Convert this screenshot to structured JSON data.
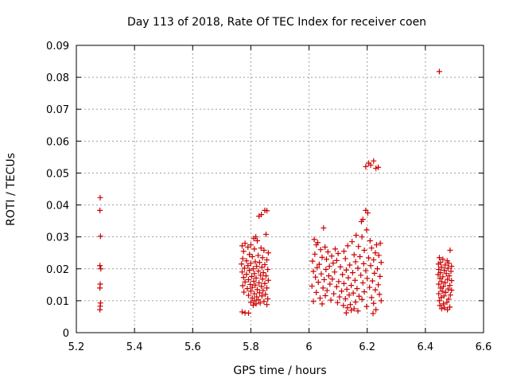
{
  "chart_data": {
    "type": "scatter",
    "title": "Day 113 of 2018, Rate Of TEC Index for receiver coen",
    "xlabel": "GPS time / hours",
    "ylabel": "ROTI / TECUs",
    "xlim": [
      5.2,
      6.6
    ],
    "ylim": [
      0,
      0.09
    ],
    "xticks": [
      5.2,
      5.4,
      5.6,
      5.8,
      6.0,
      6.2,
      6.4,
      6.6
    ],
    "xtick_labels": [
      "5.2",
      "5.4",
      "5.6",
      "5.8",
      "6",
      "6.2",
      "6.4",
      "6.6"
    ],
    "yticks": [
      0,
      0.01,
      0.02,
      0.03,
      0.04,
      0.05,
      0.06,
      0.07,
      0.08,
      0.09
    ],
    "ytick_labels": [
      "0",
      "0.01",
      "0.02",
      "0.03",
      "0.04",
      "0.05",
      "0.06",
      "0.07",
      "0.08",
      "0.09"
    ],
    "grid": true,
    "marker": "+",
    "color": "#cc0000",
    "series": [
      {
        "name": "ROTI",
        "points": [
          [
            5.282,
            0.0423
          ],
          [
            5.281,
            0.0383
          ],
          [
            5.283,
            0.0302
          ],
          [
            5.281,
            0.021
          ],
          [
            5.284,
            0.02
          ],
          [
            5.282,
            0.0152
          ],
          [
            5.281,
            0.014
          ],
          [
            5.283,
            0.0093
          ],
          [
            5.282,
            0.0083
          ],
          [
            5.281,
            0.0072
          ],
          [
            5.848,
            0.0383
          ],
          [
            5.855,
            0.0382
          ],
          [
            5.836,
            0.037
          ],
          [
            5.828,
            0.0365
          ],
          [
            5.852,
            0.0308
          ],
          [
            5.817,
            0.03
          ],
          [
            5.81,
            0.0295
          ],
          [
            5.822,
            0.0288
          ],
          [
            5.78,
            0.028
          ],
          [
            5.8,
            0.0275
          ],
          [
            5.77,
            0.0272
          ],
          [
            5.79,
            0.0268
          ],
          [
            5.835,
            0.0265
          ],
          [
            5.812,
            0.0262
          ],
          [
            5.845,
            0.0258
          ],
          [
            5.775,
            0.0255
          ],
          [
            5.86,
            0.025
          ],
          [
            5.795,
            0.0245
          ],
          [
            5.825,
            0.0242
          ],
          [
            5.805,
            0.0238
          ],
          [
            5.84,
            0.0235
          ],
          [
            5.772,
            0.0232
          ],
          [
            5.855,
            0.0228
          ],
          [
            5.785,
            0.0225
          ],
          [
            5.815,
            0.0222
          ],
          [
            5.83,
            0.022
          ],
          [
            5.8,
            0.0217
          ],
          [
            5.768,
            0.0215
          ],
          [
            5.848,
            0.0213
          ],
          [
            5.79,
            0.021
          ],
          [
            5.82,
            0.0208
          ],
          [
            5.838,
            0.0205
          ],
          [
            5.778,
            0.0202
          ],
          [
            5.808,
            0.02
          ],
          [
            5.858,
            0.0198
          ],
          [
            5.795,
            0.0195
          ],
          [
            5.826,
            0.0193
          ],
          [
            5.77,
            0.019
          ],
          [
            5.843,
            0.0188
          ],
          [
            5.812,
            0.0185
          ],
          [
            5.785,
            0.0183
          ],
          [
            5.833,
            0.018
          ],
          [
            5.852,
            0.0178
          ],
          [
            5.803,
            0.0176
          ],
          [
            5.775,
            0.0173
          ],
          [
            5.818,
            0.0171
          ],
          [
            5.84,
            0.0168
          ],
          [
            5.792,
            0.0166
          ],
          [
            5.86,
            0.0164
          ],
          [
            5.81,
            0.0161
          ],
          [
            5.78,
            0.0159
          ],
          [
            5.828,
            0.0156
          ],
          [
            5.848,
            0.0154
          ],
          [
            5.798,
            0.0151
          ],
          [
            5.815,
            0.0149
          ],
          [
            5.772,
            0.0147
          ],
          [
            5.836,
            0.0145
          ],
          [
            5.805,
            0.0142
          ],
          [
            5.855,
            0.014
          ],
          [
            5.788,
            0.0138
          ],
          [
            5.822,
            0.0135
          ],
          [
            5.842,
            0.0132
          ],
          [
            5.8,
            0.013
          ],
          [
            5.776,
            0.0127
          ],
          [
            5.83,
            0.0125
          ],
          [
            5.812,
            0.0122
          ],
          [
            5.85,
            0.012
          ],
          [
            5.792,
            0.0117
          ],
          [
            5.838,
            0.0115
          ],
          [
            5.82,
            0.0112
          ],
          [
            5.805,
            0.0108
          ],
          [
            5.858,
            0.0106
          ],
          [
            5.826,
            0.0103
          ],
          [
            5.812,
            0.01
          ],
          [
            5.845,
            0.0098
          ],
          [
            5.8,
            0.0095
          ],
          [
            5.832,
            0.0093
          ],
          [
            5.818,
            0.009
          ],
          [
            5.855,
            0.0088
          ],
          [
            5.808,
            0.0086
          ],
          [
            5.77,
            0.0065
          ],
          [
            5.78,
            0.0062
          ],
          [
            5.792,
            0.0061
          ],
          [
            6.195,
            0.0383
          ],
          [
            6.202,
            0.0375
          ],
          [
            6.185,
            0.0355
          ],
          [
            6.18,
            0.0348
          ],
          [
            6.198,
            0.0322
          ],
          [
            6.05,
            0.0328
          ],
          [
            6.182,
            0.03
          ],
          [
            6.162,
            0.0305
          ],
          [
            6.018,
            0.0292
          ],
          [
            6.21,
            0.0288
          ],
          [
            6.148,
            0.0285
          ],
          [
            6.03,
            0.0282
          ],
          [
            6.245,
            0.028
          ],
          [
            6.025,
            0.0275
          ],
          [
            6.232,
            0.0275
          ],
          [
            6.133,
            0.0272
          ],
          [
            6.17,
            0.027
          ],
          [
            6.055,
            0.0268
          ],
          [
            6.215,
            0.0265
          ],
          [
            6.09,
            0.0262
          ],
          [
            6.04,
            0.026
          ],
          [
            6.19,
            0.0258
          ],
          [
            6.12,
            0.0255
          ],
          [
            6.065,
            0.0253
          ],
          [
            6.228,
            0.025
          ],
          [
            6.1,
            0.0248
          ],
          [
            6.02,
            0.0246
          ],
          [
            6.155,
            0.0244
          ],
          [
            6.24,
            0.0242
          ],
          [
            6.078,
            0.024
          ],
          [
            6.175,
            0.0238
          ],
          [
            6.045,
            0.0236
          ],
          [
            6.205,
            0.0234
          ],
          [
            6.125,
            0.0232
          ],
          [
            6.06,
            0.023
          ],
          [
            6.222,
            0.0228
          ],
          [
            6.095,
            0.0226
          ],
          [
            6.012,
            0.0224
          ],
          [
            6.16,
            0.0222
          ],
          [
            6.248,
            0.022
          ],
          [
            6.083,
            0.0218
          ],
          [
            6.188,
            0.0216
          ],
          [
            6.035,
            0.0214
          ],
          [
            6.14,
            0.0212
          ],
          [
            6.212,
            0.021
          ],
          [
            6.07,
            0.0208
          ],
          [
            6.108,
            0.0206
          ],
          [
            6.028,
            0.0204
          ],
          [
            6.168,
            0.0202
          ],
          [
            6.235,
            0.02
          ],
          [
            6.058,
            0.0198
          ],
          [
            6.128,
            0.0196
          ],
          [
            6.195,
            0.0194
          ],
          [
            6.015,
            0.0192
          ],
          [
            6.088,
            0.019
          ],
          [
            6.15,
            0.0188
          ],
          [
            6.225,
            0.0186
          ],
          [
            6.042,
            0.0184
          ],
          [
            6.115,
            0.0182
          ],
          [
            6.178,
            0.018
          ],
          [
            6.068,
            0.0178
          ],
          [
            6.244,
            0.0176
          ],
          [
            6.022,
            0.0174
          ],
          [
            6.135,
            0.0172
          ],
          [
            6.2,
            0.017
          ],
          [
            6.08,
            0.0168
          ],
          [
            6.052,
            0.0166
          ],
          [
            6.158,
            0.0164
          ],
          [
            6.218,
            0.0162
          ],
          [
            6.102,
            0.016
          ],
          [
            6.032,
            0.0158
          ],
          [
            6.185,
            0.0156
          ],
          [
            6.12,
            0.0154
          ],
          [
            6.072,
            0.0152
          ],
          [
            6.238,
            0.015
          ],
          [
            6.145,
            0.0148
          ],
          [
            6.01,
            0.0146
          ],
          [
            6.095,
            0.0144
          ],
          [
            6.208,
            0.0142
          ],
          [
            6.048,
            0.014
          ],
          [
            6.165,
            0.0138
          ],
          [
            6.13,
            0.0136
          ],
          [
            6.228,
            0.0134
          ],
          [
            6.062,
            0.0132
          ],
          [
            6.112,
            0.013
          ],
          [
            6.19,
            0.0128
          ],
          [
            6.025,
            0.0126
          ],
          [
            6.152,
            0.0124
          ],
          [
            6.085,
            0.0122
          ],
          [
            6.242,
            0.012
          ],
          [
            6.138,
            0.0118
          ],
          [
            6.056,
            0.0116
          ],
          [
            6.172,
            0.0114
          ],
          [
            6.105,
            0.0112
          ],
          [
            6.215,
            0.011
          ],
          [
            6.038,
            0.0108
          ],
          [
            6.125,
            0.0106
          ],
          [
            6.182,
            0.0104
          ],
          [
            6.075,
            0.0102
          ],
          [
            6.248,
            0.01
          ],
          [
            6.015,
            0.0098
          ],
          [
            6.16,
            0.0096
          ],
          [
            6.098,
            0.0094
          ],
          [
            6.222,
            0.0092
          ],
          [
            6.045,
            0.009
          ],
          [
            6.142,
            0.0088
          ],
          [
            6.118,
            0.0085
          ],
          [
            6.198,
            0.0082
          ],
          [
            6.132,
            0.0078
          ],
          [
            6.155,
            0.0075
          ],
          [
            6.23,
            0.0072
          ],
          [
            6.145,
            0.007
          ],
          [
            6.168,
            0.0068
          ],
          [
            6.128,
            0.0062
          ],
          [
            6.22,
            0.006
          ],
          [
            6.205,
            0.0531
          ],
          [
            6.222,
            0.0538
          ],
          [
            6.212,
            0.0525
          ],
          [
            6.195,
            0.052
          ],
          [
            6.238,
            0.0518
          ],
          [
            6.23,
            0.0515
          ],
          [
            6.448,
            0.0818
          ],
          [
            6.485,
            0.0258
          ],
          [
            6.448,
            0.0235
          ],
          [
            6.46,
            0.023
          ],
          [
            6.475,
            0.0225
          ],
          [
            6.452,
            0.022
          ],
          [
            6.48,
            0.0218
          ],
          [
            6.445,
            0.0215
          ],
          [
            6.468,
            0.0212
          ],
          [
            6.49,
            0.0208
          ],
          [
            6.455,
            0.0205
          ],
          [
            6.478,
            0.0202
          ],
          [
            6.446,
            0.0198
          ],
          [
            6.465,
            0.0195
          ],
          [
            6.488,
            0.0192
          ],
          [
            6.452,
            0.0188
          ],
          [
            6.472,
            0.0185
          ],
          [
            6.444,
            0.0182
          ],
          [
            6.482,
            0.0178
          ],
          [
            6.46,
            0.0175
          ],
          [
            6.45,
            0.017
          ],
          [
            6.476,
            0.0167
          ],
          [
            6.49,
            0.0163
          ],
          [
            6.456,
            0.016
          ],
          [
            6.468,
            0.0156
          ],
          [
            6.446,
            0.0152
          ],
          [
            6.484,
            0.0148
          ],
          [
            6.462,
            0.0145
          ],
          [
            6.452,
            0.014
          ],
          [
            6.478,
            0.0137
          ],
          [
            6.49,
            0.0133
          ],
          [
            6.458,
            0.013
          ],
          [
            6.47,
            0.0126
          ],
          [
            6.446,
            0.0122
          ],
          [
            6.486,
            0.0118
          ],
          [
            6.464,
            0.0115
          ],
          [
            6.454,
            0.011
          ],
          [
            6.48,
            0.0105
          ],
          [
            6.448,
            0.01
          ],
          [
            6.474,
            0.0095
          ],
          [
            6.462,
            0.009
          ],
          [
            6.45,
            0.0085
          ],
          [
            6.484,
            0.008
          ],
          [
            6.466,
            0.0078
          ],
          [
            6.456,
            0.0075
          ],
          [
            6.476,
            0.0072
          ]
        ]
      }
    ]
  }
}
